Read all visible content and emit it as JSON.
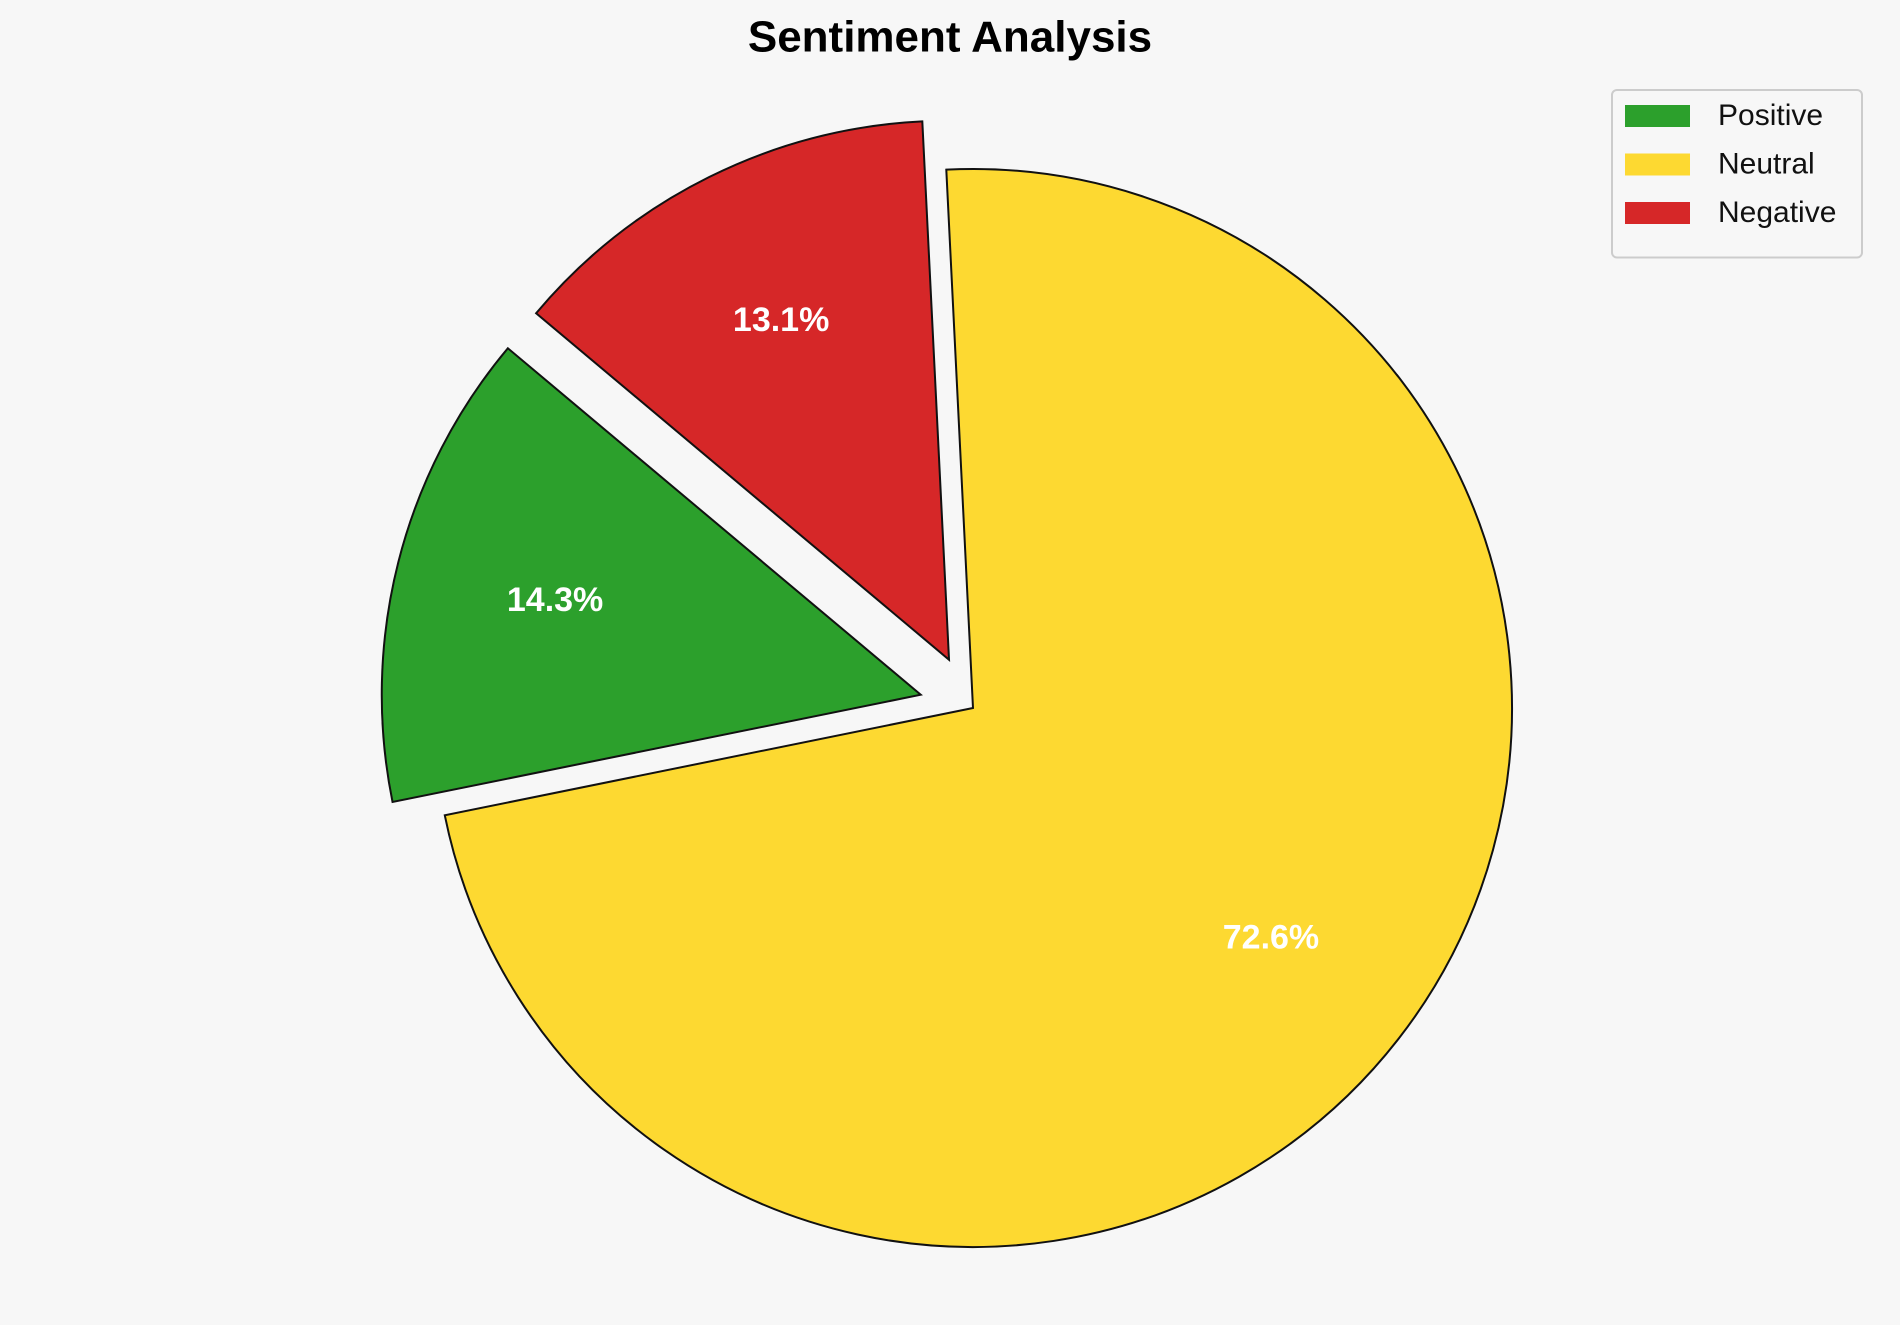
{
  "chart_data": {
    "type": "pie",
    "title": "Sentiment Analysis",
    "categories": [
      "Positive",
      "Neutral",
      "Negative"
    ],
    "values": [
      14.3,
      72.6,
      13.1
    ],
    "value_labels": [
      "14.3%",
      "72.6%",
      "13.1%"
    ],
    "colors": [
      "#2ca02c",
      "#fdd931",
      "#d62728"
    ],
    "explode": [
      0.1,
      0,
      0.1
    ],
    "startangle": 140,
    "legend": "upper right"
  }
}
